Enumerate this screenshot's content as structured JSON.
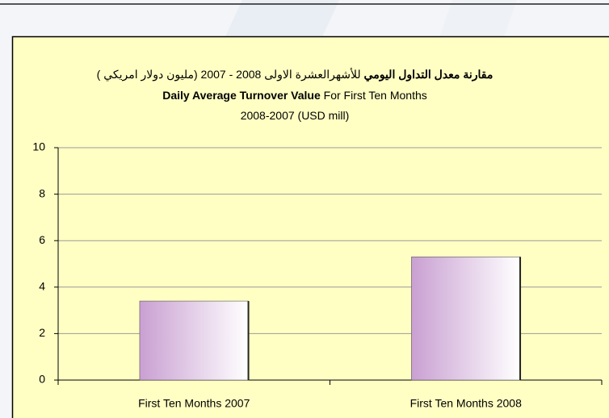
{
  "chart_data": {
    "type": "bar",
    "title": {
      "line1_bold": "مقارنة معدل التداول اليومي",
      "line1": "للأشهرالعشرة الاولى 2008 - 2007 (مليون دولار امريكي )",
      "line2_bold": "Daily Average Turnover Value",
      "line2": "For  First Ten Months",
      "line3": "2008-2007 (USD mill)"
    },
    "categories": [
      "First Ten Months 2007",
      "First Ten Months 2008"
    ],
    "values": [
      3.4,
      5.3
    ],
    "color": "#c9a0d2",
    "ylim": [
      0,
      10
    ],
    "yticks": [
      0,
      2,
      4,
      6,
      8,
      10
    ],
    "grid": true
  }
}
